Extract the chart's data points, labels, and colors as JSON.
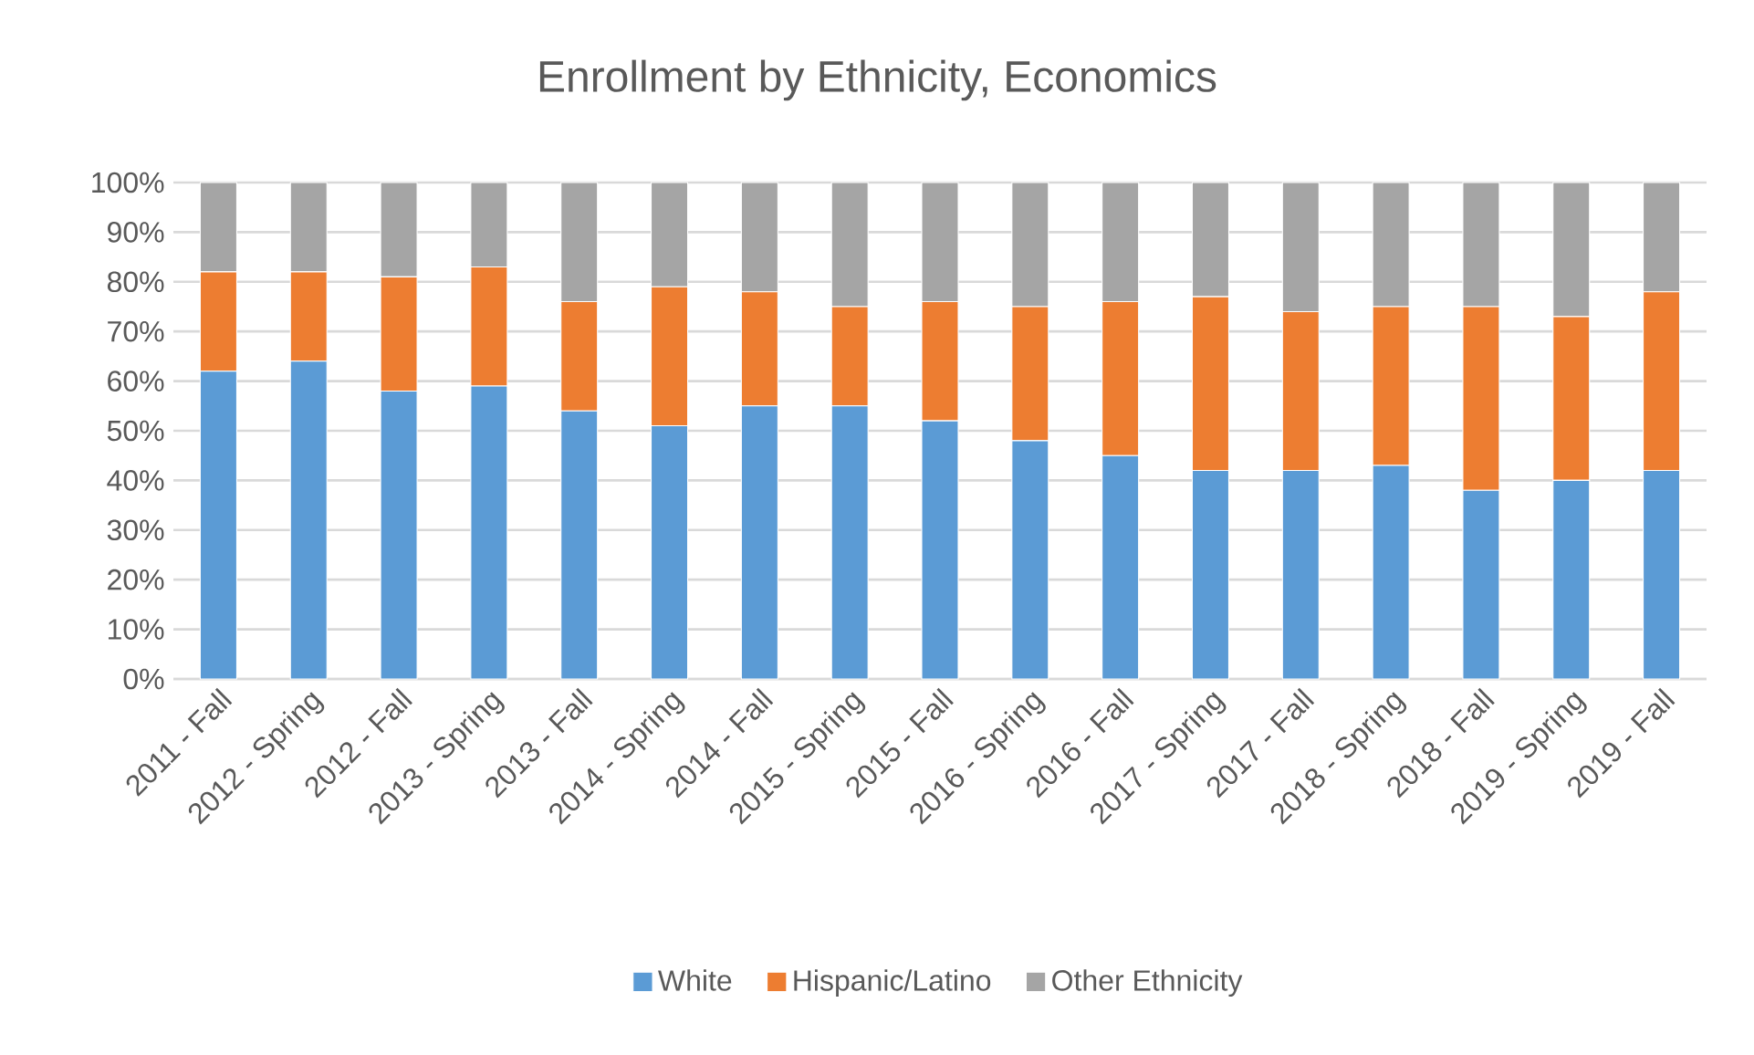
{
  "chart_data": {
    "type": "bar",
    "stacked": true,
    "title": "Enrollment by Ethnicity, Economics",
    "categories": [
      "2011 - Fall",
      "2012 - Spring",
      "2012 - Fall",
      "2013 - Spring",
      "2013 - Fall",
      "2014 - Spring",
      "2014 - Fall",
      "2015 - Spring",
      "2015 - Fall",
      "2016 - Spring",
      "2016 - Fall",
      "2017 - Spring",
      "2017 - Fall",
      "2018 - Spring",
      "2018 - Fall",
      "2019 - Spring",
      "2019 - Fall"
    ],
    "series": [
      {
        "name": "White",
        "color": "#5b9bd5",
        "values": [
          62,
          64,
          58,
          59,
          54,
          51,
          55,
          55,
          52,
          48,
          45,
          42,
          42,
          43,
          38,
          40,
          42
        ]
      },
      {
        "name": "Hispanic/Latino",
        "color": "#ed7d31",
        "values": [
          20,
          18,
          23,
          24,
          22,
          28,
          23,
          20,
          24,
          27,
          31,
          35,
          32,
          32,
          37,
          33,
          36
        ]
      },
      {
        "name": "Other Ethnicity",
        "color": "#a5a5a5",
        "values": [
          18,
          18,
          19,
          17,
          24,
          21,
          22,
          25,
          24,
          25,
          24,
          23,
          26,
          25,
          25,
          27,
          22
        ]
      }
    ],
    "ylim": [
      0,
      100
    ],
    "yticks": [
      {
        "value": 0,
        "label": "0%"
      },
      {
        "value": 10,
        "label": "10%"
      },
      {
        "value": 20,
        "label": "20%"
      },
      {
        "value": 30,
        "label": "30%"
      },
      {
        "value": 40,
        "label": "40%"
      },
      {
        "value": 50,
        "label": "50%"
      },
      {
        "value": 60,
        "label": "60%"
      },
      {
        "value": 70,
        "label": "70%"
      },
      {
        "value": 80,
        "label": "80%"
      },
      {
        "value": 90,
        "label": "90%"
      },
      {
        "value": 100,
        "label": "100%"
      }
    ],
    "grid": "y",
    "legend": "bottom"
  }
}
